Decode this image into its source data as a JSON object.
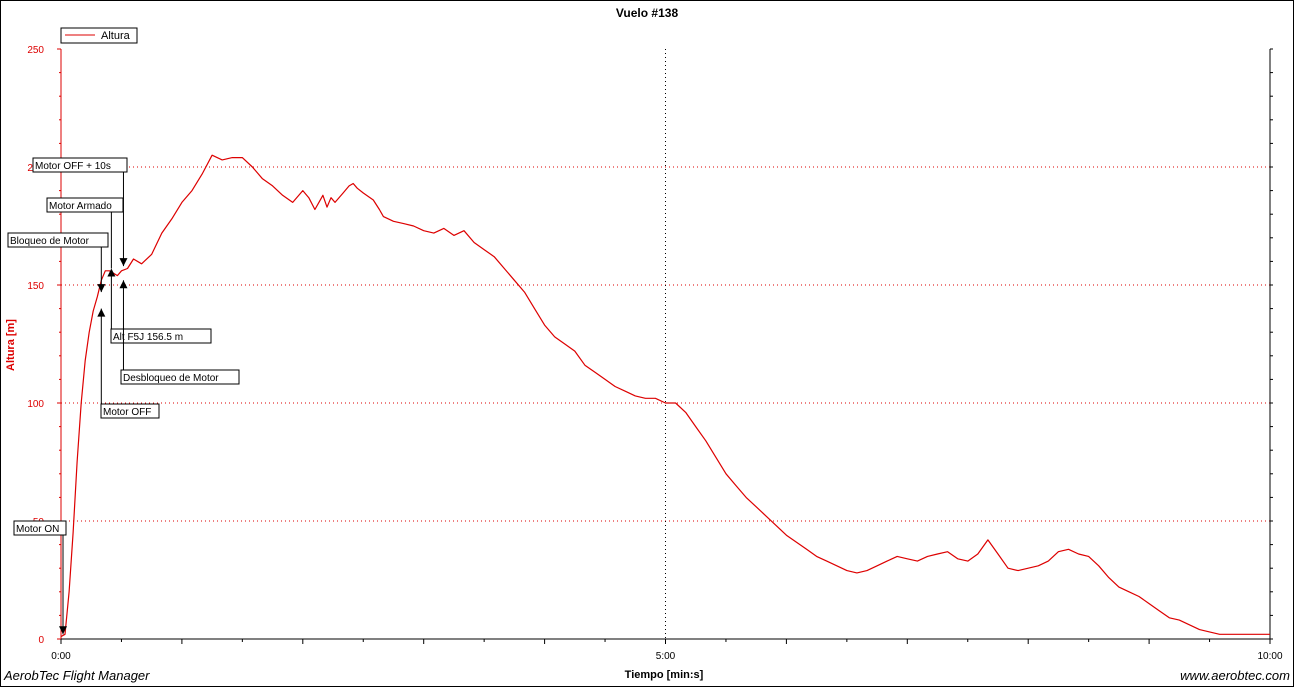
{
  "chart_data": {
    "type": "line",
    "title": "Vuelo #138",
    "xlabel": "Tiempo [min:s]",
    "ylabel": "Altura [m]",
    "xlim": [
      0,
      600
    ],
    "ylim": [
      0,
      250
    ],
    "x_ticks": [
      {
        "value": 0,
        "label": "0:00"
      },
      {
        "value": 300,
        "label": "5:00"
      },
      {
        "value": 600,
        "label": "10:00"
      }
    ],
    "y_ticks": [
      {
        "value": 0,
        "label": "0"
      },
      {
        "value": 50,
        "label": "50"
      },
      {
        "value": 100,
        "label": "100"
      },
      {
        "value": 150,
        "label": "150"
      },
      {
        "value": 200,
        "label": "200"
      },
      {
        "value": 250,
        "label": "250"
      }
    ],
    "grid": true,
    "legend": {
      "position": "top-left",
      "entries": [
        "Altura"
      ]
    },
    "series": [
      {
        "name": "Altura",
        "color": "#dd0000",
        "x": [
          0,
          2,
          4,
          6,
          8,
          10,
          12,
          14,
          16,
          18,
          20,
          22,
          24,
          26,
          28,
          30,
          33,
          36,
          40,
          45,
          50,
          55,
          60,
          65,
          70,
          75,
          80,
          85,
          90,
          95,
          100,
          105,
          110,
          115,
          120,
          123,
          126,
          128,
          130,
          132,
          134,
          136,
          140,
          143,
          145,
          147,
          150,
          155,
          158,
          160,
          165,
          170,
          175,
          180,
          185,
          190,
          195,
          200,
          205,
          210,
          215,
          220,
          225,
          230,
          235,
          240,
          245,
          250,
          255,
          260,
          265,
          270,
          275,
          280,
          285,
          290,
          295,
          300,
          305,
          310,
          315,
          320,
          325,
          330,
          335,
          340,
          345,
          350,
          355,
          360,
          365,
          370,
          375,
          380,
          385,
          390,
          395,
          400,
          405,
          410,
          415,
          420,
          425,
          430,
          435,
          440,
          445,
          450,
          455,
          460,
          465,
          470,
          475,
          480,
          485,
          490,
          495,
          500,
          505,
          510,
          515,
          520,
          525,
          530,
          535,
          540,
          545,
          550,
          555,
          560,
          565,
          570,
          575,
          580,
          585,
          590,
          595,
          600
        ],
        "y": [
          1,
          2,
          20,
          45,
          75,
          100,
          118,
          130,
          139,
          145,
          152,
          156,
          156,
          155,
          154,
          156,
          157,
          161,
          159,
          163,
          172,
          178,
          185,
          190,
          197,
          205,
          203,
          204,
          204,
          200,
          195,
          192,
          188,
          185,
          190,
          187,
          182,
          185,
          188,
          183,
          187,
          185,
          189,
          192,
          193,
          191,
          189,
          186,
          182,
          179,
          177,
          176,
          175,
          173,
          172,
          174,
          171,
          173,
          168,
          165,
          162,
          157,
          152,
          147,
          140,
          133,
          128,
          125,
          122,
          116,
          113,
          110,
          107,
          105,
          103,
          102,
          102,
          100,
          100,
          96,
          90,
          84,
          77,
          70,
          65,
          60,
          56,
          52,
          48,
          44,
          41,
          38,
          35,
          33,
          31,
          29,
          28,
          29,
          31,
          33,
          35,
          34,
          33,
          35,
          36,
          37,
          34,
          33,
          36,
          42,
          36,
          30,
          29,
          30,
          31,
          33,
          37,
          38,
          36,
          35,
          31,
          26,
          22,
          20,
          18,
          15,
          12,
          9,
          8,
          6,
          4,
          3,
          2,
          2,
          2,
          2,
          2,
          2
        ]
      }
    ],
    "annotations": [
      {
        "label": "Motor ON",
        "x": 1,
        "y": 2,
        "marker": "down"
      },
      {
        "label": "Bloqueo de Motor",
        "x": 20,
        "y": 147,
        "marker": "down"
      },
      {
        "label": "Motor Armado",
        "x": 25,
        "y": 157,
        "marker": "up"
      },
      {
        "label": "Motor OFF + 10s",
        "x": 31,
        "y": 158,
        "marker": "down"
      },
      {
        "label": "Alt F5J  156.5 m",
        "x": 25,
        "y": 156.5,
        "marker": "none"
      },
      {
        "label": "Desbloqueo de Motor",
        "x": 31,
        "y": 152,
        "marker": "up"
      },
      {
        "label": "Motor OFF",
        "x": 20,
        "y": 140,
        "marker": "up"
      }
    ]
  },
  "footer": {
    "left": "AerobTec Flight Manager",
    "right": "www.aerobtec.com"
  }
}
